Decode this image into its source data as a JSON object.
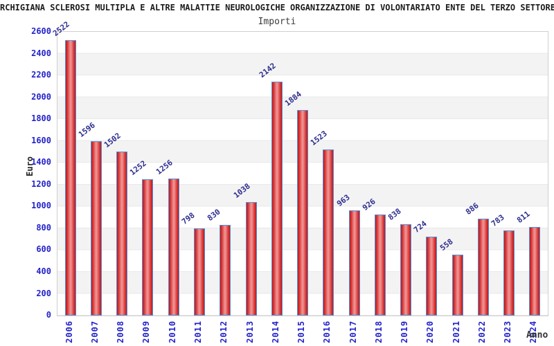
{
  "title": "RCHIGIANA SCLEROSI MULTIPLA E ALTRE MALATTIE NEUROLOGICHE ORGANIZZAZIONE DI VOLONTARIATO ENTE DEL TERZO SETTORE (c",
  "subtitle": "Importi",
  "chart_data": {
    "type": "bar",
    "title": "Importi",
    "xlabel": "Anno",
    "ylabel": "Euro",
    "categories": [
      "2006",
      "2007",
      "2008",
      "2009",
      "2010",
      "2011",
      "2012",
      "2013",
      "2014",
      "2015",
      "2016",
      "2017",
      "2018",
      "2019",
      "2020",
      "2021",
      "2022",
      "2023",
      "2024"
    ],
    "values": [
      2522,
      1596,
      1502,
      1252,
      1256,
      798,
      830,
      1038,
      2142,
      1884,
      1523,
      963,
      926,
      838,
      724,
      558,
      886,
      783,
      811
    ],
    "ylim": [
      0,
      2600
    ],
    "ytick_step": 200,
    "grid": "horizontal alternating bands every 200 units",
    "legend_position": "none",
    "colors": {
      "bar_fill_edge": "#c01818",
      "bar_fill_center": "#ef9090",
      "bar_border": "#4f94dd",
      "axis_tick_label": "#2323cc",
      "value_label": "#2d2d8f",
      "band_gray": "#f3f3f3",
      "grid_line": "#e9e9e9",
      "axis_text": "#222222"
    }
  }
}
